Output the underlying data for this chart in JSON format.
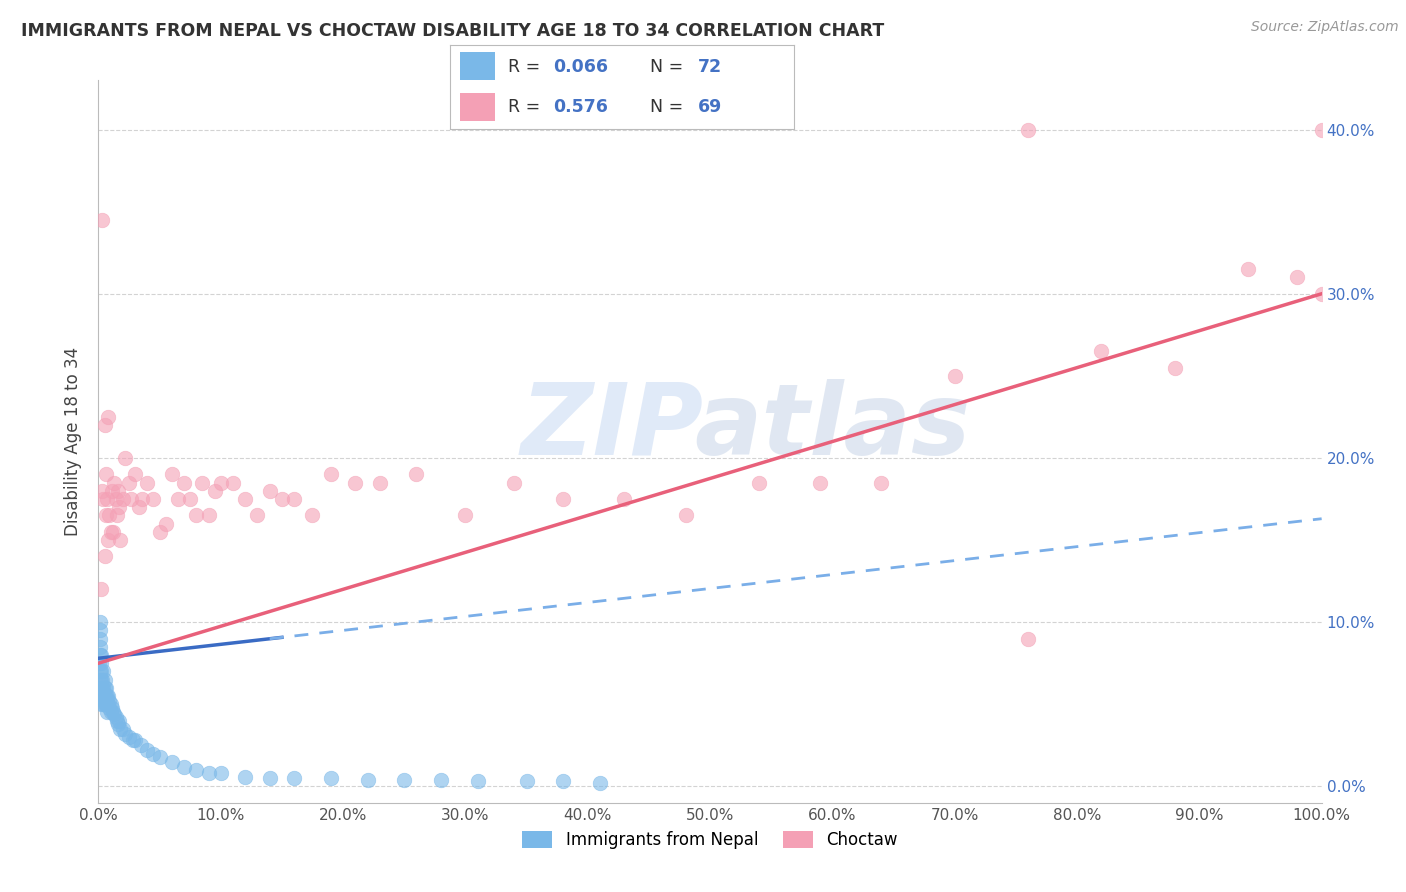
{
  "title": "IMMIGRANTS FROM NEPAL VS CHOCTAW DISABILITY AGE 18 TO 34 CORRELATION CHART",
  "source": "Source: ZipAtlas.com",
  "ylabel": "Disability Age 18 to 34",
  "watermark_zip": "ZIP",
  "watermark_atlas": "atlas",
  "series1_label": "Immigrants from Nepal",
  "series1_color": "#7ab8e8",
  "series2_label": "Choctaw",
  "series2_color": "#f4a0b5",
  "trend1_solid_color": "#3a6bc4",
  "trend1_dash_color": "#7aaee8",
  "trend2_color": "#e8607a",
  "background_color": "#ffffff",
  "xlim": [
    0.0,
    1.0
  ],
  "ylim": [
    -0.01,
    0.43
  ],
  "x_ticks": [
    0.0,
    0.1,
    0.2,
    0.3,
    0.4,
    0.5,
    0.6,
    0.7,
    0.8,
    0.9,
    1.0
  ],
  "y_ticks_right": [
    0.0,
    0.1,
    0.2,
    0.3,
    0.4
  ],
  "nepal_x": [
    0.0005,
    0.001,
    0.001,
    0.001,
    0.001,
    0.001,
    0.001,
    0.001,
    0.001,
    0.001,
    0.002,
    0.002,
    0.002,
    0.002,
    0.002,
    0.002,
    0.003,
    0.003,
    0.003,
    0.003,
    0.004,
    0.004,
    0.004,
    0.005,
    0.005,
    0.005,
    0.005,
    0.006,
    0.006,
    0.006,
    0.007,
    0.007,
    0.007,
    0.008,
    0.008,
    0.009,
    0.009,
    0.01,
    0.01,
    0.011,
    0.012,
    0.013,
    0.014,
    0.015,
    0.016,
    0.017,
    0.018,
    0.02,
    0.022,
    0.025,
    0.028,
    0.03,
    0.035,
    0.04,
    0.045,
    0.05,
    0.06,
    0.07,
    0.08,
    0.09,
    0.1,
    0.12,
    0.14,
    0.16,
    0.19,
    0.22,
    0.25,
    0.28,
    0.31,
    0.35,
    0.38,
    0.41
  ],
  "nepal_y": [
    0.075,
    0.065,
    0.07,
    0.08,
    0.085,
    0.09,
    0.095,
    0.1,
    0.055,
    0.06,
    0.06,
    0.065,
    0.07,
    0.075,
    0.08,
    0.05,
    0.055,
    0.06,
    0.065,
    0.055,
    0.06,
    0.07,
    0.05,
    0.055,
    0.06,
    0.065,
    0.05,
    0.055,
    0.06,
    0.05,
    0.05,
    0.055,
    0.045,
    0.05,
    0.055,
    0.048,
    0.052,
    0.045,
    0.05,
    0.048,
    0.045,
    0.044,
    0.042,
    0.04,
    0.038,
    0.04,
    0.035,
    0.035,
    0.032,
    0.03,
    0.028,
    0.028,
    0.025,
    0.022,
    0.02,
    0.018,
    0.015,
    0.012,
    0.01,
    0.008,
    0.008,
    0.006,
    0.005,
    0.005,
    0.005,
    0.004,
    0.004,
    0.004,
    0.003,
    0.003,
    0.003,
    0.002
  ],
  "choctaw_x": [
    0.002,
    0.003,
    0.003,
    0.004,
    0.005,
    0.005,
    0.006,
    0.006,
    0.007,
    0.008,
    0.008,
    0.009,
    0.01,
    0.011,
    0.012,
    0.013,
    0.014,
    0.015,
    0.016,
    0.017,
    0.018,
    0.02,
    0.022,
    0.025,
    0.027,
    0.03,
    0.033,
    0.036,
    0.04,
    0.045,
    0.05,
    0.055,
    0.06,
    0.065,
    0.07,
    0.075,
    0.08,
    0.085,
    0.09,
    0.095,
    0.1,
    0.11,
    0.12,
    0.13,
    0.14,
    0.15,
    0.16,
    0.175,
    0.19,
    0.21,
    0.23,
    0.26,
    0.3,
    0.34,
    0.38,
    0.43,
    0.48,
    0.54,
    0.59,
    0.64,
    0.7,
    0.76,
    0.82,
    0.88,
    0.94,
    0.98,
    1.0,
    1.0,
    0.76
  ],
  "choctaw_y": [
    0.12,
    0.345,
    0.18,
    0.175,
    0.14,
    0.22,
    0.165,
    0.19,
    0.175,
    0.225,
    0.15,
    0.165,
    0.155,
    0.18,
    0.155,
    0.185,
    0.175,
    0.165,
    0.18,
    0.17,
    0.15,
    0.175,
    0.2,
    0.185,
    0.175,
    0.19,
    0.17,
    0.175,
    0.185,
    0.175,
    0.155,
    0.16,
    0.19,
    0.175,
    0.185,
    0.175,
    0.165,
    0.185,
    0.165,
    0.18,
    0.185,
    0.185,
    0.175,
    0.165,
    0.18,
    0.175,
    0.175,
    0.165,
    0.19,
    0.185,
    0.185,
    0.19,
    0.165,
    0.185,
    0.175,
    0.175,
    0.165,
    0.185,
    0.185,
    0.185,
    0.25,
    0.09,
    0.265,
    0.255,
    0.315,
    0.31,
    0.3,
    0.4,
    0.4
  ],
  "trend1_x_solid_start": 0.0,
  "trend1_x_solid_end": 0.15,
  "trend1_x_dash_start": 0.14,
  "trend1_x_dash_end": 1.0,
  "trend1_intercept": 0.078,
  "trend1_slope": 0.085,
  "trend2_intercept": 0.075,
  "trend2_slope": 0.225
}
